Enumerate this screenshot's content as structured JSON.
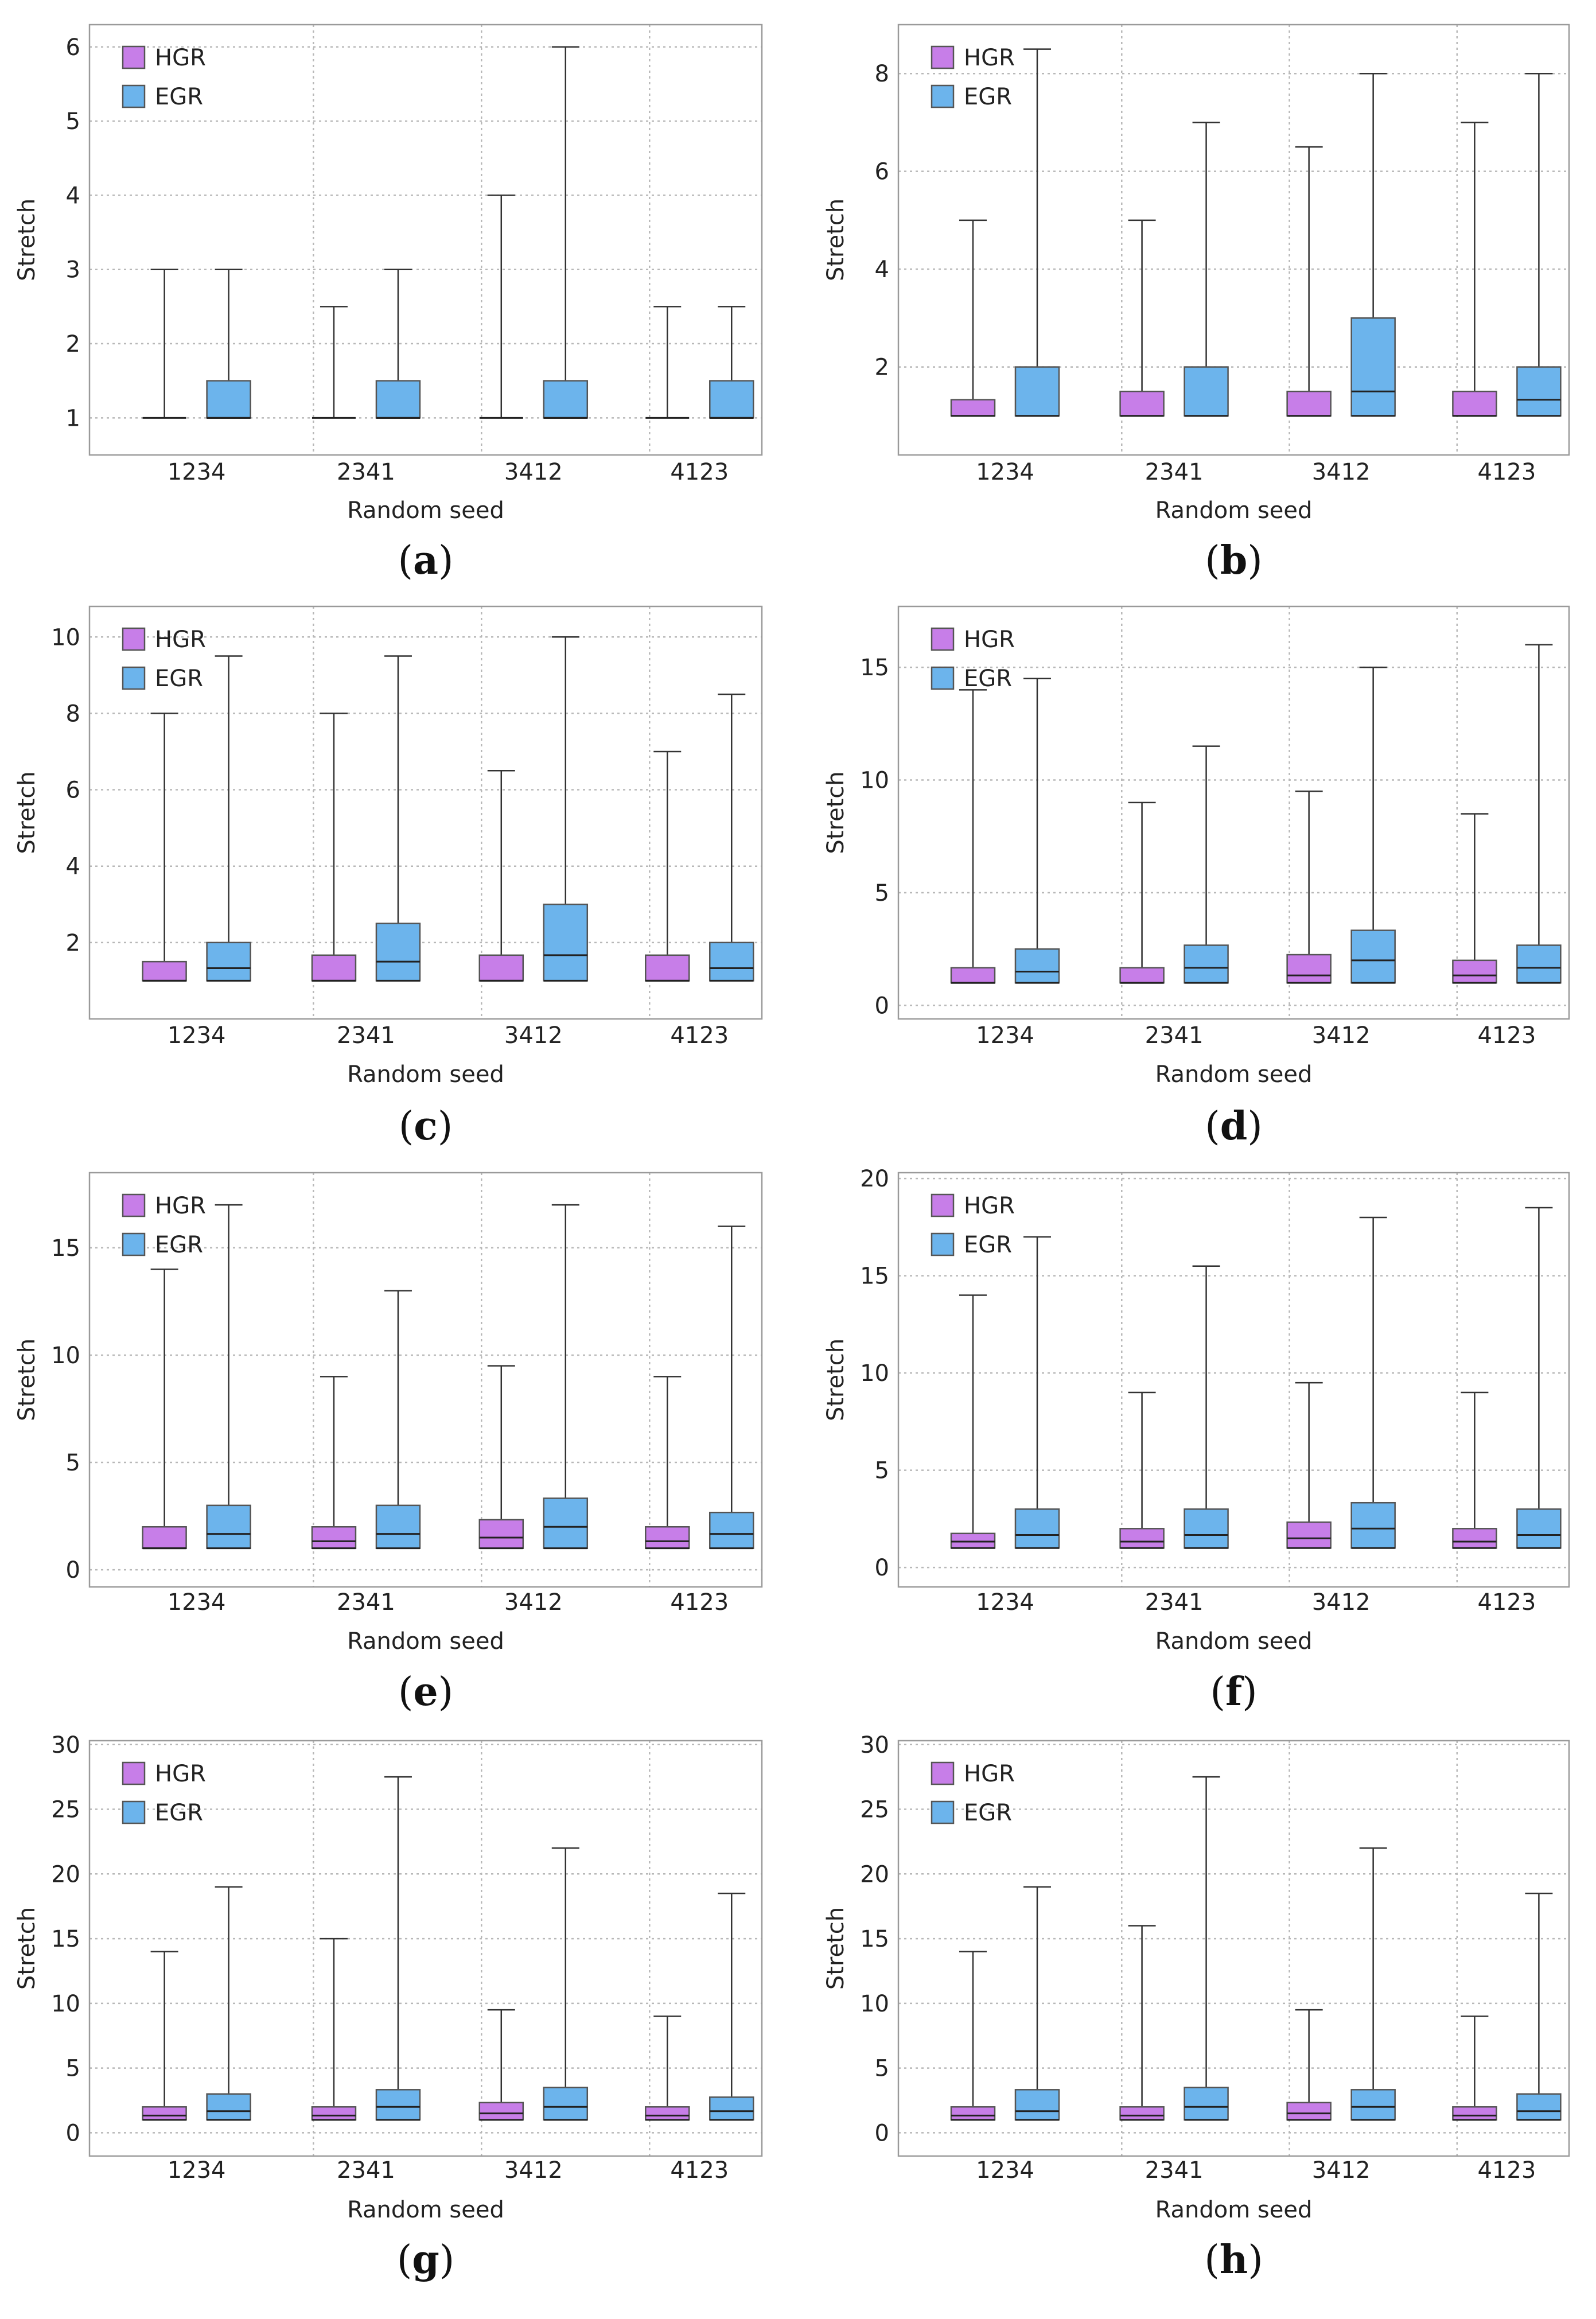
{
  "colors": {
    "HGR": "#c77ee8",
    "EGR": "#6cb4ec"
  },
  "chart_data": [
    {
      "panel": "a",
      "type": "box",
      "xlabel": "Random seed",
      "ylabel": "Stretch",
      "ylim": [
        0.5,
        6.3
      ],
      "yticks": [
        1,
        2,
        3,
        4,
        5,
        6
      ],
      "categories": [
        "1234",
        "2341",
        "3412",
        "4123"
      ],
      "legend": [
        "HGR",
        "EGR"
      ],
      "series": [
        {
          "name": "HGR",
          "boxes": [
            {
              "min": 1,
              "q1": 1,
              "median": 1,
              "q3": 1,
              "max": 3
            },
            {
              "min": 1,
              "q1": 1,
              "median": 1,
              "q3": 1,
              "max": 2.5
            },
            {
              "min": 1,
              "q1": 1,
              "median": 1,
              "q3": 1,
              "max": 4
            },
            {
              "min": 1,
              "q1": 1,
              "median": 1,
              "q3": 1,
              "max": 2.5
            }
          ]
        },
        {
          "name": "EGR",
          "boxes": [
            {
              "min": 1,
              "q1": 1,
              "median": 1,
              "q3": 1.5,
              "max": 3
            },
            {
              "min": 1,
              "q1": 1,
              "median": 1,
              "q3": 1.5,
              "max": 3
            },
            {
              "min": 1,
              "q1": 1,
              "median": 1,
              "q3": 1.5,
              "max": 6
            },
            {
              "min": 1,
              "q1": 1,
              "median": 1,
              "q3": 1.5,
              "max": 2.5
            }
          ]
        }
      ]
    },
    {
      "panel": "b",
      "type": "box",
      "xlabel": "Random seed",
      "ylabel": "Stretch",
      "ylim": [
        0.2,
        9.0
      ],
      "yticks": [
        2,
        4,
        6,
        8
      ],
      "categories": [
        "1234",
        "2341",
        "3412",
        "4123"
      ],
      "legend": [
        "HGR",
        "EGR"
      ],
      "series": [
        {
          "name": "HGR",
          "boxes": [
            {
              "min": 1,
              "q1": 1,
              "median": 1,
              "q3": 1.33,
              "max": 5
            },
            {
              "min": 1,
              "q1": 1,
              "median": 1,
              "q3": 1.5,
              "max": 5
            },
            {
              "min": 1,
              "q1": 1,
              "median": 1,
              "q3": 1.5,
              "max": 6.5
            },
            {
              "min": 1,
              "q1": 1,
              "median": 1,
              "q3": 1.5,
              "max": 7
            }
          ]
        },
        {
          "name": "EGR",
          "boxes": [
            {
              "min": 1,
              "q1": 1,
              "median": 1,
              "q3": 2,
              "max": 8.5
            },
            {
              "min": 1,
              "q1": 1,
              "median": 1,
              "q3": 2,
              "max": 7
            },
            {
              "min": 1,
              "q1": 1,
              "median": 1.5,
              "q3": 3,
              "max": 8
            },
            {
              "min": 1,
              "q1": 1,
              "median": 1.33,
              "q3": 2,
              "max": 8
            }
          ]
        }
      ]
    },
    {
      "panel": "c",
      "type": "box",
      "xlabel": "Random seed",
      "ylabel": "Stretch",
      "ylim": [
        0,
        10.8
      ],
      "yticks": [
        2,
        4,
        6,
        8,
        10
      ],
      "categories": [
        "1234",
        "2341",
        "3412",
        "4123"
      ],
      "legend": [
        "HGR",
        "EGR"
      ],
      "series": [
        {
          "name": "HGR",
          "boxes": [
            {
              "min": 1,
              "q1": 1,
              "median": 1,
              "q3": 1.5,
              "max": 8
            },
            {
              "min": 1,
              "q1": 1,
              "median": 1,
              "q3": 1.67,
              "max": 8
            },
            {
              "min": 1,
              "q1": 1,
              "median": 1,
              "q3": 1.67,
              "max": 6.5
            },
            {
              "min": 1,
              "q1": 1,
              "median": 1,
              "q3": 1.67,
              "max": 7
            }
          ]
        },
        {
          "name": "EGR",
          "boxes": [
            {
              "min": 1,
              "q1": 1,
              "median": 1.33,
              "q3": 2,
              "max": 9.5
            },
            {
              "min": 1,
              "q1": 1,
              "median": 1.5,
              "q3": 2.5,
              "max": 9.5
            },
            {
              "min": 1,
              "q1": 1,
              "median": 1.67,
              "q3": 3,
              "max": 10
            },
            {
              "min": 1,
              "q1": 1,
              "median": 1.33,
              "q3": 2,
              "max": 8.5
            }
          ]
        }
      ]
    },
    {
      "panel": "d",
      "type": "box",
      "xlabel": "Random seed",
      "ylabel": "Stretch",
      "ylim": [
        -0.6,
        17.7
      ],
      "yticks": [
        0,
        5,
        10,
        15
      ],
      "categories": [
        "1234",
        "2341",
        "3412",
        "4123"
      ],
      "legend": [
        "HGR",
        "EGR"
      ],
      "series": [
        {
          "name": "HGR",
          "boxes": [
            {
              "min": 1,
              "q1": 1,
              "median": 1,
              "q3": 1.67,
              "max": 14
            },
            {
              "min": 1,
              "q1": 1,
              "median": 1,
              "q3": 1.67,
              "max": 9
            },
            {
              "min": 1,
              "q1": 1,
              "median": 1.33,
              "q3": 2.25,
              "max": 9.5
            },
            {
              "min": 1,
              "q1": 1,
              "median": 1.33,
              "q3": 2,
              "max": 8.5
            }
          ]
        },
        {
          "name": "EGR",
          "boxes": [
            {
              "min": 1,
              "q1": 1,
              "median": 1.5,
              "q3": 2.5,
              "max": 14.5
            },
            {
              "min": 1,
              "q1": 1,
              "median": 1.67,
              "q3": 2.67,
              "max": 11.5
            },
            {
              "min": 1,
              "q1": 1,
              "median": 2,
              "q3": 3.33,
              "max": 15
            },
            {
              "min": 1,
              "q1": 1,
              "median": 1.67,
              "q3": 2.67,
              "max": 16
            }
          ]
        }
      ]
    },
    {
      "panel": "e",
      "type": "box",
      "xlabel": "Random seed",
      "ylabel": "Stretch",
      "ylim": [
        -0.8,
        18.5
      ],
      "yticks": [
        0,
        5,
        10,
        15
      ],
      "categories": [
        "1234",
        "2341",
        "3412",
        "4123"
      ],
      "legend": [
        "HGR",
        "EGR"
      ],
      "series": [
        {
          "name": "HGR",
          "boxes": [
            {
              "min": 1,
              "q1": 1,
              "median": 1,
              "q3": 2,
              "max": 14
            },
            {
              "min": 1,
              "q1": 1,
              "median": 1.33,
              "q3": 2,
              "max": 9
            },
            {
              "min": 1,
              "q1": 1,
              "median": 1.5,
              "q3": 2.33,
              "max": 9.5
            },
            {
              "min": 1,
              "q1": 1,
              "median": 1.33,
              "q3": 2,
              "max": 9
            }
          ]
        },
        {
          "name": "EGR",
          "boxes": [
            {
              "min": 1,
              "q1": 1,
              "median": 1.67,
              "q3": 3,
              "max": 17
            },
            {
              "min": 1,
              "q1": 1,
              "median": 1.67,
              "q3": 3,
              "max": 13
            },
            {
              "min": 1,
              "q1": 1,
              "median": 2,
              "q3": 3.33,
              "max": 17
            },
            {
              "min": 1,
              "q1": 1,
              "median": 1.67,
              "q3": 2.67,
              "max": 16
            }
          ]
        }
      ]
    },
    {
      "panel": "f",
      "type": "box",
      "xlabel": "Random seed",
      "ylabel": "Stretch",
      "ylim": [
        -1.0,
        20.3
      ],
      "yticks": [
        0,
        5,
        10,
        15,
        20
      ],
      "categories": [
        "1234",
        "2341",
        "3412",
        "4123"
      ],
      "legend": [
        "HGR",
        "EGR"
      ],
      "series": [
        {
          "name": "HGR",
          "boxes": [
            {
              "min": 1,
              "q1": 1,
              "median": 1.33,
              "q3": 1.75,
              "max": 14
            },
            {
              "min": 1,
              "q1": 1,
              "median": 1.33,
              "q3": 2,
              "max": 9
            },
            {
              "min": 1,
              "q1": 1,
              "median": 1.5,
              "q3": 2.33,
              "max": 9.5
            },
            {
              "min": 1,
              "q1": 1,
              "median": 1.33,
              "q3": 2,
              "max": 9
            }
          ]
        },
        {
          "name": "EGR",
          "boxes": [
            {
              "min": 1,
              "q1": 1,
              "median": 1.67,
              "q3": 3,
              "max": 17
            },
            {
              "min": 1,
              "q1": 1,
              "median": 1.67,
              "q3": 3,
              "max": 15.5
            },
            {
              "min": 1,
              "q1": 1,
              "median": 2,
              "q3": 3.33,
              "max": 18
            },
            {
              "min": 1,
              "q1": 1,
              "median": 1.67,
              "q3": 3,
              "max": 18.5
            }
          ]
        }
      ]
    },
    {
      "panel": "g",
      "type": "box",
      "xlabel": "Random seed",
      "ylabel": "Stretch",
      "ylim": [
        -1.8,
        30.3
      ],
      "yticks": [
        0,
        5,
        10,
        15,
        20,
        25,
        30
      ],
      "categories": [
        "1234",
        "2341",
        "3412",
        "4123"
      ],
      "legend": [
        "HGR",
        "EGR"
      ],
      "series": [
        {
          "name": "HGR",
          "boxes": [
            {
              "min": 1,
              "q1": 1,
              "median": 1.33,
              "q3": 2,
              "max": 14
            },
            {
              "min": 1,
              "q1": 1,
              "median": 1.33,
              "q3": 2,
              "max": 15
            },
            {
              "min": 1,
              "q1": 1,
              "median": 1.5,
              "q3": 2.33,
              "max": 9.5
            },
            {
              "min": 1,
              "q1": 1,
              "median": 1.33,
              "q3": 2,
              "max": 9
            }
          ]
        },
        {
          "name": "EGR",
          "boxes": [
            {
              "min": 1,
              "q1": 1,
              "median": 1.67,
              "q3": 3,
              "max": 19
            },
            {
              "min": 1,
              "q1": 1,
              "median": 2,
              "q3": 3.33,
              "max": 27.5
            },
            {
              "min": 1,
              "q1": 1,
              "median": 2,
              "q3": 3.5,
              "max": 22
            },
            {
              "min": 1,
              "q1": 1,
              "median": 1.67,
              "q3": 2.75,
              "max": 18.5
            }
          ]
        }
      ]
    },
    {
      "panel": "h",
      "type": "box",
      "xlabel": "Random seed",
      "ylabel": "Stretch",
      "ylim": [
        -1.8,
        30.3
      ],
      "yticks": [
        0,
        5,
        10,
        15,
        20,
        25,
        30
      ],
      "categories": [
        "1234",
        "2341",
        "3412",
        "4123"
      ],
      "legend": [
        "HGR",
        "EGR"
      ],
      "series": [
        {
          "name": "HGR",
          "boxes": [
            {
              "min": 1,
              "q1": 1,
              "median": 1.33,
              "q3": 2,
              "max": 14
            },
            {
              "min": 1,
              "q1": 1,
              "median": 1.33,
              "q3": 2,
              "max": 16
            },
            {
              "min": 1,
              "q1": 1,
              "median": 1.5,
              "q3": 2.33,
              "max": 9.5
            },
            {
              "min": 1,
              "q1": 1,
              "median": 1.33,
              "q3": 2,
              "max": 9
            }
          ]
        },
        {
          "name": "EGR",
          "boxes": [
            {
              "min": 1,
              "q1": 1,
              "median": 1.67,
              "q3": 3.33,
              "max": 19
            },
            {
              "min": 1,
              "q1": 1,
              "median": 2,
              "q3": 3.5,
              "max": 27.5
            },
            {
              "min": 1,
              "q1": 1,
              "median": 2,
              "q3": 3.33,
              "max": 22
            },
            {
              "min": 1,
              "q1": 1,
              "median": 1.67,
              "q3": 3,
              "max": 18.5
            }
          ]
        }
      ]
    }
  ]
}
